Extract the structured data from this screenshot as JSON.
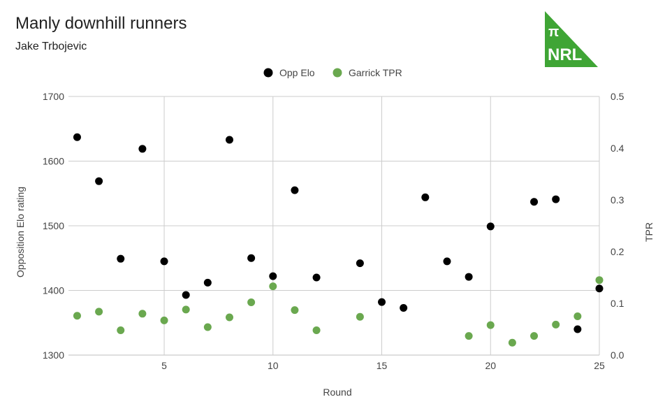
{
  "header": {
    "title": "Manly downhill runners",
    "subtitle": "Jake Trbojevic"
  },
  "logo": {
    "symbol": "π",
    "text": "NRL",
    "color": "#3fa535"
  },
  "chart_data": {
    "type": "scatter",
    "xlabel": "Round",
    "ylabel": "Opposition Elo rating",
    "y2label": "TPR",
    "xlim": [
      0.6,
      25
    ],
    "ylim": [
      1300,
      1700
    ],
    "y2lim": [
      0,
      0.5
    ],
    "xticks": [
      5,
      10,
      15,
      20,
      25
    ],
    "yticks": [
      1300,
      1400,
      1500,
      1600,
      1700
    ],
    "y2ticks": [
      "0.0",
      "0.1",
      "0.2",
      "0.3",
      "0.4",
      "0.5"
    ],
    "legend_position": "top",
    "grid": true,
    "series": [
      {
        "name": "Opp Elo",
        "axis": "left",
        "color": "#000000",
        "points": [
          [
            1,
            1637
          ],
          [
            2,
            1569
          ],
          [
            3,
            1449
          ],
          [
            4,
            1619
          ],
          [
            5,
            1445
          ],
          [
            6,
            1393
          ],
          [
            7,
            1412
          ],
          [
            8,
            1633
          ],
          [
            9,
            1450
          ],
          [
            10,
            1422
          ],
          [
            11,
            1555
          ],
          [
            12,
            1420
          ],
          [
            14,
            1442
          ],
          [
            15,
            1382
          ],
          [
            16,
            1373
          ],
          [
            17,
            1544
          ],
          [
            18,
            1445
          ],
          [
            19,
            1421
          ],
          [
            20,
            1499
          ],
          [
            22,
            1537
          ],
          [
            23,
            1541
          ],
          [
            24,
            1340
          ],
          [
            25,
            1403
          ]
        ]
      },
      {
        "name": "Garrick TPR",
        "axis": "right",
        "color": "#6aa84f",
        "points": [
          [
            1,
            0.076
          ],
          [
            2,
            0.084
          ],
          [
            3,
            0.048
          ],
          [
            4,
            0.08
          ],
          [
            5,
            0.067
          ],
          [
            6,
            0.088
          ],
          [
            7,
            0.054
          ],
          [
            8,
            0.073
          ],
          [
            9,
            0.102
          ],
          [
            10,
            0.133
          ],
          [
            11,
            0.087
          ],
          [
            12,
            0.048
          ],
          [
            14,
            0.074
          ],
          [
            19,
            0.037
          ],
          [
            20,
            0.058
          ],
          [
            21,
            0.024
          ],
          [
            22,
            0.037
          ],
          [
            23,
            0.059
          ],
          [
            24,
            0.075
          ],
          [
            25,
            0.145
          ]
        ]
      }
    ]
  }
}
